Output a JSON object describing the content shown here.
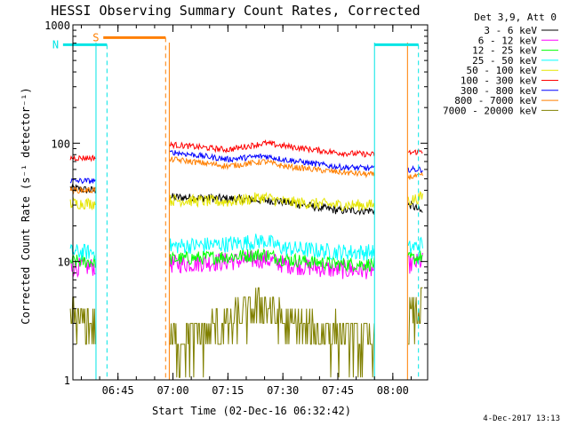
{
  "chart_data": {
    "type": "line",
    "title": "HESSI Observing Summary Count Rates, Corrected",
    "xlabel": "Start Time (02-Dec-16 06:32:42)",
    "ylabel": "Corrected Count Rate (s⁻¹ detector⁻¹)",
    "yscale": "log",
    "ylim": [
      1,
      1000
    ],
    "xlim_minutes_after_0630": [
      2.7,
      99.5
    ],
    "x_ticks": [
      "06:45",
      "07:00",
      "07:15",
      "07:30",
      "07:45",
      "08:00"
    ],
    "y_ticks": [
      "1",
      "10",
      "100",
      "1000"
    ],
    "legend_title": "Det 3,9, Att 0",
    "legend_position": "top-right",
    "timestamp": "4-Dec-2017 13:13",
    "data_gaps": [
      [
        "06:39",
        "06:59"
      ],
      [
        "07:55",
        "08:04"
      ]
    ],
    "flags": [
      {
        "label": "S",
        "color": "#ff7f00",
        "start": "06:41",
        "end": "06:58",
        "y": 780
      },
      {
        "label": "N",
        "color": "#00e5e5",
        "start": "06:30",
        "end": "06:42",
        "y": 680
      },
      {
        "label": "",
        "color": "#00e5e5",
        "start": "07:55",
        "end": "08:07",
        "y": 680
      }
    ],
    "series": [
      {
        "name": "3 - 6 keV",
        "color": "#000000",
        "values": {
          "times": [
            "06:32",
            "06:37",
            "06:38",
            "07:00",
            "07:15",
            "07:25",
            "07:30",
            "07:45",
            "07:55",
            "08:05",
            "08:08"
          ],
          "counts": [
            42,
            40,
            40,
            35,
            34,
            33,
            32,
            27,
            27,
            30,
            26
          ]
        }
      },
      {
        "name": "6 - 12 keV",
        "color": "#ff00ff",
        "values": {
          "times": [
            "06:32",
            "06:37",
            "06:38",
            "07:00",
            "07:15",
            "07:25",
            "07:30",
            "07:45",
            "07:55",
            "08:05",
            "08:08"
          ],
          "counts": [
            9,
            9,
            9,
            9.5,
            10,
            10.5,
            9.5,
            8.5,
            8.5,
            9.5,
            10
          ]
        }
      },
      {
        "name": "12 - 25 keV",
        "color": "#00ff00",
        "values": {
          "times": [
            "06:32",
            "06:37",
            "06:38",
            "07:00",
            "07:15",
            "07:25",
            "07:30",
            "07:45",
            "07:55",
            "08:05",
            "08:08"
          ],
          "counts": [
            10,
            10,
            10,
            10.5,
            11,
            11.5,
            10.5,
            9.5,
            9.5,
            10.5,
            11
          ]
        }
      },
      {
        "name": "25 - 50 keV",
        "color": "#00ffff",
        "values": {
          "times": [
            "06:32",
            "06:37",
            "06:38",
            "07:00",
            "07:15",
            "07:25",
            "07:30",
            "07:45",
            "07:55",
            "08:05",
            "08:08"
          ],
          "counts": [
            12,
            12,
            12,
            13.5,
            14,
            15,
            13,
            12,
            12,
            13,
            14
          ]
        }
      },
      {
        "name": "50 - 100 keV",
        "color": "#e5e500",
        "values": {
          "times": [
            "06:32",
            "06:37",
            "06:38",
            "07:00",
            "07:15",
            "07:25",
            "07:30",
            "07:45",
            "07:55",
            "08:05",
            "08:08"
          ],
          "counts": [
            31,
            31,
            31,
            33,
            32,
            35,
            32,
            30,
            30,
            33,
            35
          ]
        }
      },
      {
        "name": "100 - 300 keV",
        "color": "#ff0000",
        "values": {
          "times": [
            "06:32",
            "06:37",
            "06:38",
            "07:00",
            "07:15",
            "07:25",
            "07:30",
            "07:45",
            "07:55",
            "08:05",
            "08:08"
          ],
          "counts": [
            75,
            75,
            75,
            97,
            88,
            100,
            95,
            83,
            80,
            83,
            86
          ]
        }
      },
      {
        "name": "300 - 800 keV",
        "color": "#0000ff",
        "values": {
          "times": [
            "06:32",
            "06:37",
            "06:38",
            "07:00",
            "07:15",
            "07:25",
            "07:30",
            "07:45",
            "07:55",
            "08:05",
            "08:08"
          ],
          "counts": [
            48,
            48,
            48,
            84,
            73,
            78,
            73,
            63,
            61,
            60,
            60
          ]
        }
      },
      {
        "name": "800 - 7000 keV",
        "color": "#ff7f00",
        "values": {
          "times": [
            "06:32",
            "06:37",
            "06:38",
            "07:00",
            "07:15",
            "07:25",
            "07:30",
            "07:45",
            "07:55",
            "08:05",
            "08:08"
          ],
          "counts": [
            40,
            40,
            40,
            73,
            64,
            70,
            64,
            57,
            54,
            52,
            53
          ]
        }
      },
      {
        "name": "7000 - 20000 keV",
        "color": "#808000",
        "values": {
          "times": [
            "06:32",
            "06:37",
            "06:38",
            "07:00",
            "07:15",
            "07:25",
            "07:30",
            "07:45",
            "07:55",
            "08:05",
            "08:08"
          ],
          "counts": [
            3.5,
            3,
            3,
            2,
            3,
            4.5,
            3,
            2.5,
            2,
            3.5,
            4.5
          ]
        }
      }
    ]
  }
}
